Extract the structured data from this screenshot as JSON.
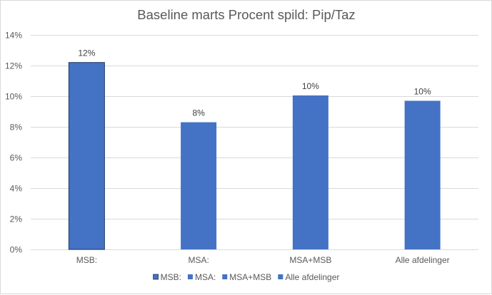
{
  "chart_data": {
    "type": "bar",
    "title": "Baseline marts Procent spild: Pip/Taz",
    "categories": [
      "MSB:",
      "MSA:",
      "MSA+MSB",
      "Alle afdelinger"
    ],
    "values": [
      0.122,
      0.083,
      0.1005,
      0.097
    ],
    "data_labels": [
      "12%",
      "8%",
      "10%",
      "10%"
    ],
    "ylim": [
      0,
      0.14
    ],
    "yticks": [
      0,
      0.02,
      0.04,
      0.06,
      0.08,
      0.1,
      0.12,
      0.14
    ],
    "ytick_labels": [
      "0%",
      "2%",
      "4%",
      "6%",
      "8%",
      "10%",
      "12%",
      "14%"
    ],
    "grid": true,
    "legend_position": "bottom",
    "legend": [
      "MSB:",
      "MSA:",
      "MSA+MSB",
      "Alle afdelinger"
    ],
    "colors": {
      "bar": "#4472c4",
      "bar_highlight_border": "#1f3864",
      "grid": "#d9d9d9",
      "text": "#595959"
    },
    "highlighted_bar": 0
  }
}
